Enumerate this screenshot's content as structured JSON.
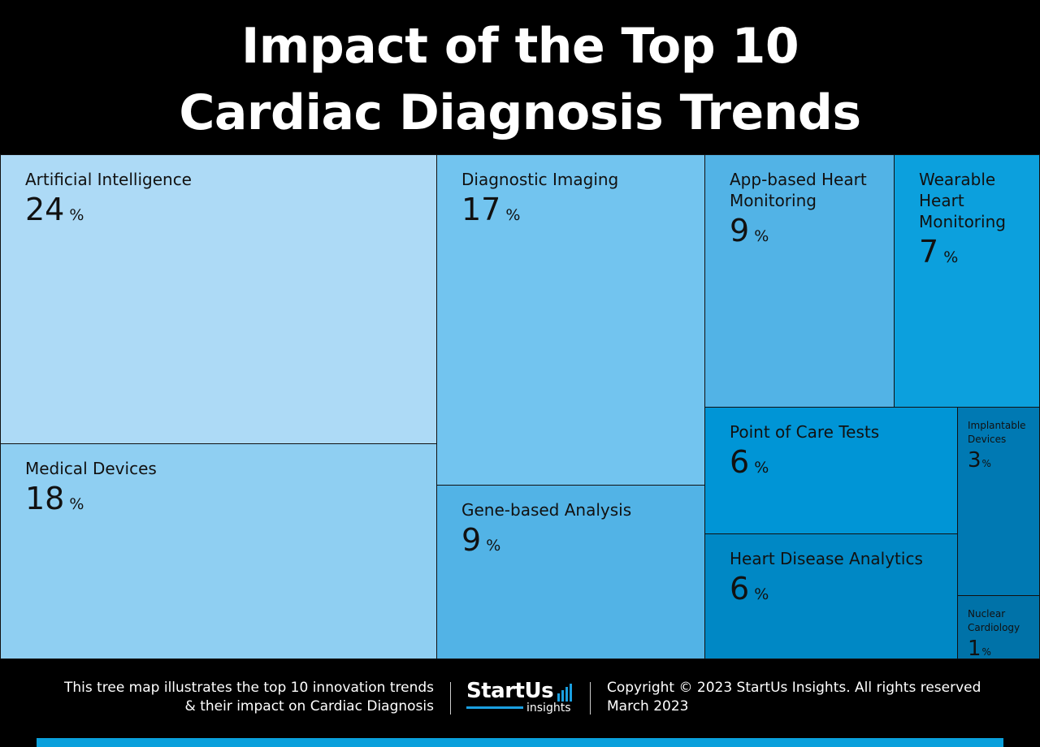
{
  "title": {
    "line1": "Impact of the Top 10",
    "line2": "Cardiac Diagnosis Trends"
  },
  "chart_data": {
    "type": "treemap",
    "title": "Impact of the Top 10 Cardiac Diagnosis Trends",
    "unit": "%",
    "items": [
      {
        "label": "Artificial Intelligence",
        "value": 24,
        "color": "#addaf6"
      },
      {
        "label": "Medical Devices",
        "value": 18,
        "color": "#8fcff2"
      },
      {
        "label": "Diagnostic Imaging",
        "value": 17,
        "color": "#72c4ef"
      },
      {
        "label": "Gene-based Analysis",
        "value": 9,
        "color": "#52b3e6"
      },
      {
        "label": "App-based Heart\nMonitoring",
        "value": 9,
        "color": "#52b3e6"
      },
      {
        "label": "Wearable\nHeart\nMonitoring",
        "value": 7,
        "color": "#0ca0dd"
      },
      {
        "label": "Point of Care Tests",
        "value": 6,
        "color": "#0095d6"
      },
      {
        "label": "Heart Disease Analytics",
        "value": 6,
        "color": "#0088c5"
      },
      {
        "label": "Implantable\nDevices",
        "value": 3,
        "color": "#0079b3"
      },
      {
        "label": "Nuclear\nCardiology",
        "value": 1,
        "color": "#0072a8"
      }
    ]
  },
  "footer": {
    "description_line1": "This tree map illustrates the top 10 innovation trends",
    "description_line2": "& their impact on Cardiac Diagnosis",
    "logo_main": "StartUs",
    "logo_sub": "insights",
    "copyright": "Copyright © 2023 StartUs Insights. All rights reserved",
    "date": "March 2023"
  },
  "colors": {
    "background": "#000000",
    "accent_bar": "#0aa0dc"
  }
}
